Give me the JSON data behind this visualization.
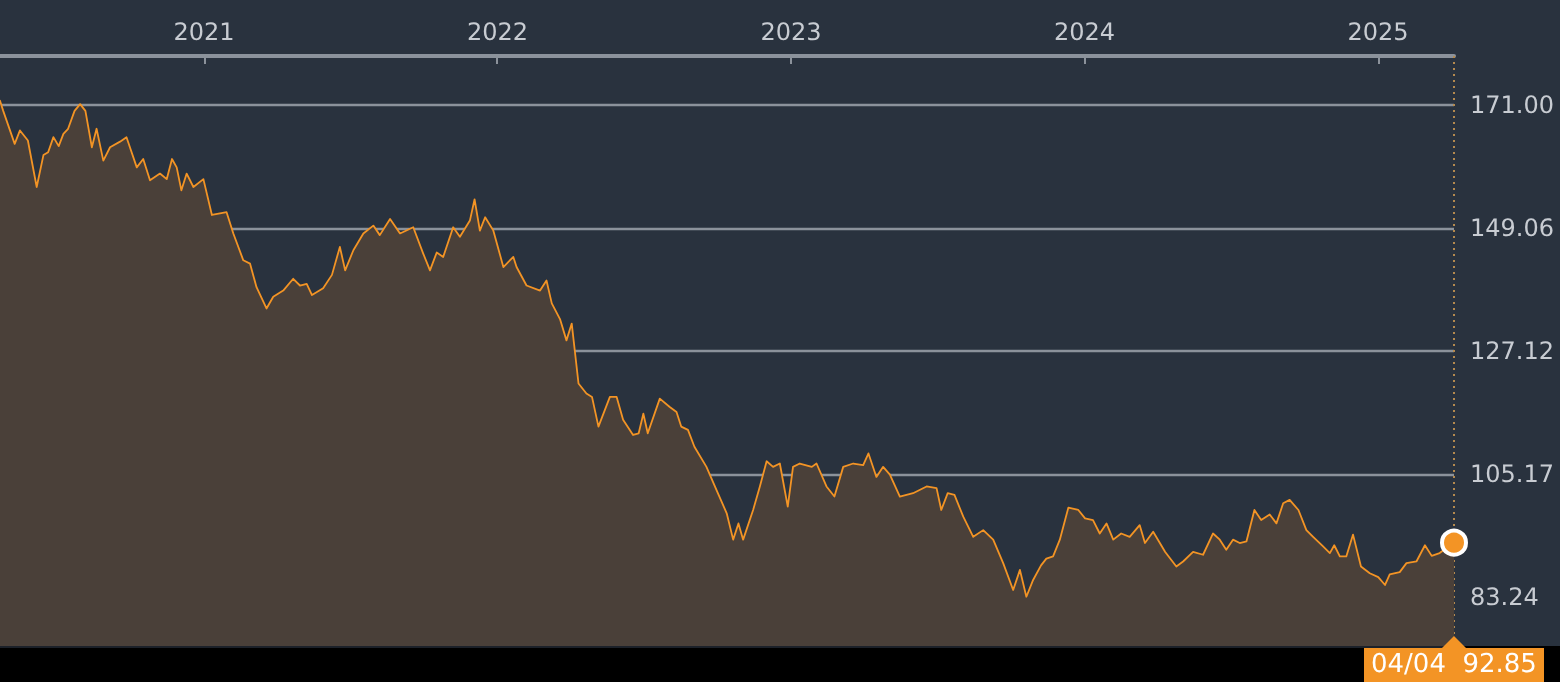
{
  "chart_data": {
    "type": "area",
    "x": [
      2020.305,
      2020.316,
      2020.355,
      2020.373,
      2020.4,
      2020.43,
      2020.453,
      2020.469,
      2020.487,
      2020.505,
      2020.521,
      2020.537,
      2020.559,
      2020.578,
      2020.596,
      2020.618,
      2020.634,
      2020.657,
      2020.68,
      2020.714,
      2020.736,
      2020.771,
      2020.793,
      2020.816,
      2020.85,
      2020.873,
      2020.891,
      2020.907,
      2020.923,
      2020.941,
      2020.964,
      2020.998,
      2021.027,
      2021.077,
      2021.1,
      2021.134,
      2021.157,
      2021.179,
      2021.213,
      2021.236,
      2021.27,
      2021.304,
      2021.327,
      2021.35,
      2021.368,
      2021.406,
      2021.436,
      2021.463,
      2021.481,
      2021.509,
      2021.543,
      2021.577,
      2021.599,
      2021.634,
      2021.668,
      2021.713,
      2021.747,
      2021.77,
      2021.793,
      2021.815,
      2021.849,
      2021.872,
      2021.906,
      2021.922,
      2021.94,
      2021.958,
      2021.986,
      2022.02,
      2022.054,
      2022.065,
      2022.099,
      2022.145,
      2022.167,
      2022.185,
      2022.213,
      2022.235,
      2022.253,
      2022.276,
      2022.303,
      2022.322,
      2022.344,
      2022.383,
      2022.406,
      2022.428,
      2022.462,
      2022.481,
      2022.497,
      2022.512,
      2022.553,
      2022.587,
      2022.61,
      2022.626,
      2022.649,
      2022.671,
      2022.712,
      2022.746,
      2022.781,
      2022.803,
      2022.821,
      2022.837,
      2022.871,
      2022.894,
      2022.917,
      2022.939,
      2022.962,
      2022.989,
      2023.007,
      2023.03,
      2023.071,
      2023.087,
      2023.121,
      2023.148,
      2023.178,
      2023.212,
      2023.246,
      2023.264,
      2023.291,
      2023.314,
      2023.337,
      2023.371,
      2023.416,
      2023.462,
      2023.496,
      2023.512,
      2023.534,
      2023.557,
      2023.587,
      2023.621,
      2023.655,
      2023.689,
      2023.723,
      2023.757,
      2023.78,
      2023.802,
      2023.825,
      2023.852,
      2023.87,
      2023.893,
      2023.916,
      2023.945,
      2023.979,
      2024.002,
      2024.029,
      2024.052,
      2024.075,
      2024.098,
      2024.125,
      2024.154,
      2024.188,
      2024.206,
      2024.234,
      2024.275,
      2024.313,
      2024.336,
      2024.37,
      2024.404,
      2024.438,
      2024.461,
      2024.483,
      2024.506,
      2024.529,
      2024.552,
      2024.579,
      2024.602,
      2024.631,
      2024.654,
      2024.677,
      2024.699,
      2024.729,
      2024.756,
      2024.779,
      2024.813,
      2024.836,
      2024.851,
      2024.87,
      2024.892,
      2024.915,
      2024.942,
      2024.972,
      2025.001,
      2025.024,
      2025.04,
      2025.074,
      2025.097,
      2025.131,
      2025.16,
      2025.183,
      2025.21,
      2025.259
    ],
    "series": [
      {
        "color": "#f39425",
        "values": [
          171.8,
          170.0,
          164.1,
          166.5,
          164.7,
          156.4,
          162.1,
          162.6,
          165.3,
          163.7,
          165.9,
          166.8,
          170.0,
          171.2,
          170.0,
          163.5,
          166.8,
          161.1,
          163.5,
          164.5,
          165.3,
          159.9,
          161.4,
          157.6,
          158.8,
          157.8,
          161.4,
          159.9,
          155.8,
          158.8,
          156.4,
          157.8,
          151.4,
          151.9,
          148.1,
          143.3,
          142.7,
          138.5,
          134.7,
          136.8,
          137.9,
          140.0,
          138.8,
          139.1,
          137.1,
          138.3,
          140.7,
          145.7,
          141.5,
          145.1,
          148.1,
          149.5,
          147.8,
          150.7,
          148.1,
          149.2,
          144.5,
          141.5,
          144.7,
          143.9,
          149.2,
          147.5,
          150.4,
          154.2,
          148.6,
          151.0,
          148.6,
          142.1,
          143.9,
          142.1,
          138.8,
          137.9,
          139.7,
          135.6,
          132.8,
          129.0,
          132.0,
          121.3,
          119.5,
          118.9,
          113.6,
          118.9,
          118.9,
          114.8,
          112.1,
          112.4,
          115.9,
          112.4,
          118.6,
          117.1,
          116.2,
          113.6,
          113.0,
          110.0,
          106.4,
          102.3,
          98.1,
          93.4,
          96.3,
          93.4,
          98.7,
          102.9,
          107.4,
          106.4,
          107.0,
          99.3,
          106.4,
          107.0,
          106.4,
          107.0,
          102.9,
          101.1,
          106.4,
          107.0,
          106.7,
          108.8,
          104.6,
          106.4,
          105.0,
          101.1,
          101.7,
          102.9,
          102.6,
          98.7,
          101.7,
          101.4,
          97.5,
          93.9,
          95.1,
          93.4,
          89.2,
          84.4,
          88.0,
          83.2,
          86.2,
          88.8,
          90.0,
          90.4,
          93.4,
          99.1,
          98.7,
          97.2,
          96.9,
          94.5,
          96.3,
          93.4,
          94.5,
          93.9,
          96.0,
          92.8,
          94.8,
          91.2,
          88.6,
          89.5,
          91.2,
          90.7,
          94.5,
          93.4,
          91.6,
          93.4,
          92.8,
          93.1,
          98.7,
          96.9,
          97.9,
          96.3,
          99.9,
          100.5,
          98.7,
          95.1,
          93.9,
          92.2,
          91.0,
          92.4,
          90.4,
          90.4,
          94.3,
          88.6,
          87.4,
          86.7,
          85.3,
          87.2,
          87.6,
          89.2,
          89.5,
          92.4,
          90.5,
          91.0,
          92.85
        ]
      }
    ],
    "xlim": [
      2020.305,
      2025.259
    ],
    "xticks": [
      2021,
      2022,
      2023,
      2024,
      2025
    ],
    "ylim": [
      74.4,
      179.8
    ],
    "yticks": [
      83.24,
      105.17,
      127.12,
      149.06,
      {
        "value": 171,
        "label": "171.00"
      }
    ],
    "grid": "y",
    "marker": "none",
    "ref_lines": [
      {
        "axis": "x",
        "value": 2025.259,
        "color": "#b58a4e",
        "line_style": "dotted"
      }
    ],
    "annotations": [
      "04/04  92.85"
    ]
  }
}
